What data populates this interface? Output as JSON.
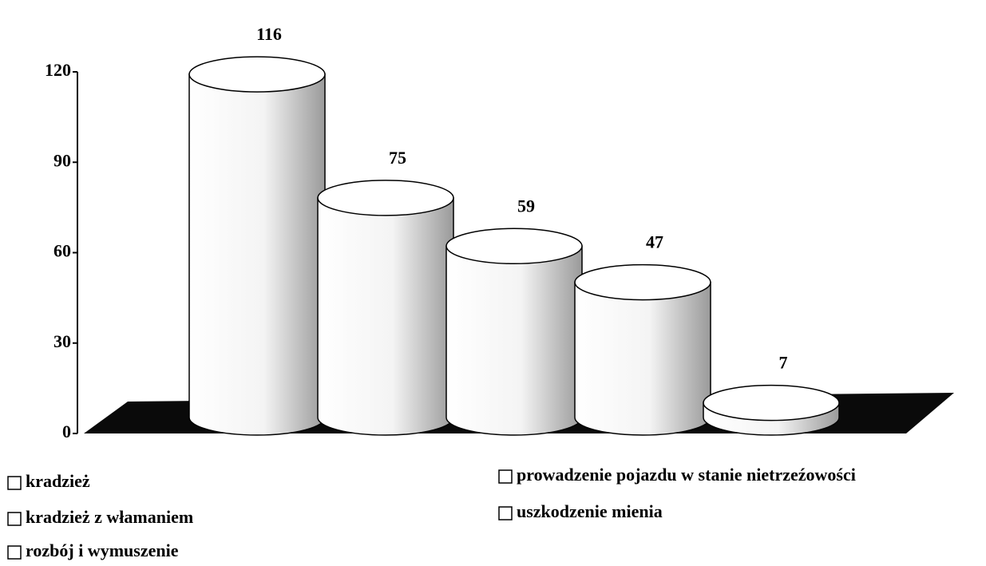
{
  "chart_data": {
    "type": "bar",
    "categories": [
      "kradzież",
      "kradzież z włamaniem",
      "rozbój i wymuszenie",
      "prowadzenie pojazdu w stanie nietrzeźowości",
      "uszkodzenie mienia"
    ],
    "values": [
      116,
      75,
      59,
      47,
      7
    ],
    "color": "#ffffff",
    "ylim": [
      0,
      120
    ],
    "yticks": [
      0,
      30,
      60,
      90,
      120
    ],
    "grid": false
  }
}
